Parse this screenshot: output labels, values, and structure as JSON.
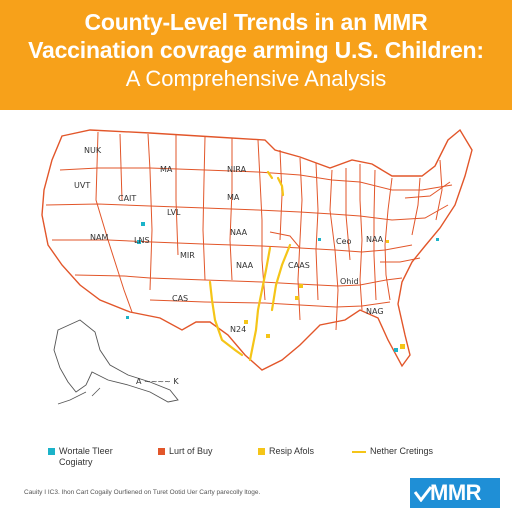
{
  "header": {
    "title_line1": "County-Level Trends in an MMR",
    "title_line2": "Vaccination covrage arming U.S. Children:",
    "subtitle": "A Comprehensive Analysis",
    "background_color": "#f7a11a"
  },
  "map": {
    "border_color": "#e2562a",
    "outline_color": "#555555",
    "state_labels": [
      "NUK",
      "UVT",
      "CAIT",
      "MA",
      "NIRA",
      "LVL",
      "MA",
      "NAM",
      "NAA",
      "LNS",
      "MIR",
      "NAA",
      "CAS",
      "CAAS",
      "N24",
      "Ceo",
      "NAA",
      "Ohid",
      "NAG"
    ],
    "alaska_label": "A ~~~~ K"
  },
  "legend": {
    "items": [
      {
        "label": "Wortale Tleer Cogiatry",
        "color": "#1bb3c9",
        "kind": "square"
      },
      {
        "label": "Lurt of Buy",
        "color": "#e2562a",
        "kind": "square"
      },
      {
        "label": "Resip Afols",
        "color": "#f5c518",
        "kind": "square"
      },
      {
        "label": "Nether Cretings",
        "color": "#f5c518",
        "kind": "line"
      }
    ]
  },
  "footnote": "Cauity I IC3. Ihon Cart Cogaily Ourfiened on Turet Ootid Uer Carty parecolly ltoge.",
  "logo": {
    "text": "MMR",
    "color": "#1f8fd6"
  }
}
